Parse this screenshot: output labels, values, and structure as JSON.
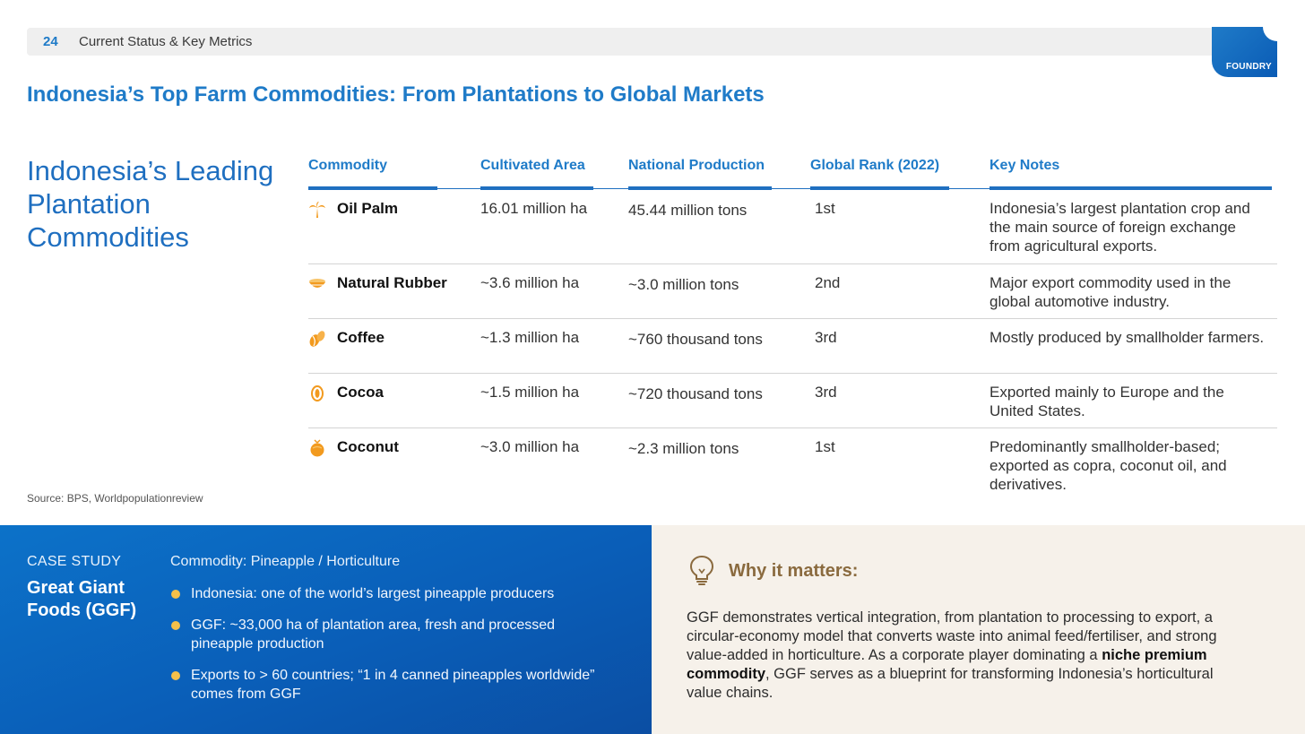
{
  "header": {
    "page_number": "24",
    "section": "Current Status & Key Metrics",
    "logo_text": "FOUNDRY"
  },
  "title": "Indonesia’s Top Farm Commodities: From Plantations to Global Markets",
  "side_heading": "Indonesia’s Leading Plantation Commodities",
  "table": {
    "columns": [
      "Commodity",
      "Cultivated Area",
      "National Production",
      "Global Rank (2022)",
      "Key Notes"
    ],
    "rows": [
      {
        "icon": "palm-tree-icon",
        "commodity": "Oil Palm",
        "area": "16.01 million ha",
        "production": "45.44 million tons",
        "rank": "1st",
        "notes": "Indonesia’s largest plantation crop and the main source of foreign exchange from agricultural exports."
      },
      {
        "icon": "rubber-bowl-icon",
        "commodity": "Natural Rubber",
        "area": "~3.6 million ha",
        "production": "~3.0 million tons",
        "rank": "2nd",
        "notes": "Major export commodity used in the global automotive industry."
      },
      {
        "icon": "coffee-bean-icon",
        "commodity": "Coffee",
        "area": "~1.3 million ha",
        "production": "~760 thousand tons",
        "rank": "3rd",
        "notes": "Mostly produced by smallholder farmers."
      },
      {
        "icon": "cocoa-pod-icon",
        "commodity": "Cocoa",
        "area": "~1.5 million ha",
        "production": "~720 thousand tons",
        "rank": "3rd",
        "notes": "Exported mainly to Europe and the United States."
      },
      {
        "icon": "coconut-icon",
        "commodity": "Coconut",
        "area": "~3.0 million ha",
        "production": "~2.3 million tons",
        "rank": "1st",
        "notes": "Predominantly smallholder-based; exported as copra, coconut oil, and derivatives."
      }
    ]
  },
  "source": "Source: BPS, Worldpopulationreview",
  "case_study": {
    "label": "CASE STUDY",
    "company": "Great Giant Foods (GGF)",
    "commodity": "Commodity: Pineapple / Horticulture",
    "bullets": [
      "Indonesia: one of the world’s largest pineapple producers",
      "GGF: ~33,000 ha of plantation area, fresh and processed pineapple production",
      "Exports to > 60 countries; “1 in 4 canned pineapples worldwide” comes from GGF"
    ]
  },
  "why_it_matters": {
    "title": "Why it matters:",
    "text_before": "GGF demonstrates vertical integration, from plantation to processing to export, a circular-economy model that converts waste into animal feed/fertiliser, and strong value-added in horticulture. As a corporate player dominating a ",
    "text_bold": "niche premium commodity",
    "text_after": ", GGF serves as a blueprint for transforming Indonesia’s horticultural value chains."
  },
  "colors": {
    "accent_blue": "#1f7bc8",
    "icon_orange": "#f29a1e",
    "bullet_yellow": "#f5c04a",
    "why_brown": "#8a6a3e",
    "why_bg": "#f6f1ea"
  }
}
